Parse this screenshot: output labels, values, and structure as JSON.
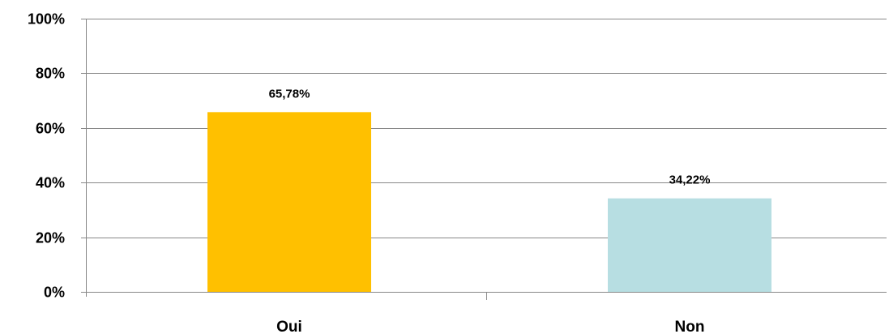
{
  "chart_data": {
    "type": "bar",
    "categories": [
      "Oui",
      "Non"
    ],
    "values": [
      65.78,
      34.22
    ],
    "data_labels": [
      "65,78%",
      "34,22%"
    ],
    "colors": [
      "#FFC000",
      "#B7DEE2"
    ],
    "ylim": [
      0,
      100
    ],
    "yticks": [
      0,
      20,
      40,
      60,
      80,
      100
    ],
    "ytick_labels": [
      "0%",
      "20%",
      "40%",
      "60%",
      "80%",
      "100%"
    ],
    "grid": true,
    "legend": "none",
    "axis_color": "#888888",
    "grid_color": "#888888"
  }
}
